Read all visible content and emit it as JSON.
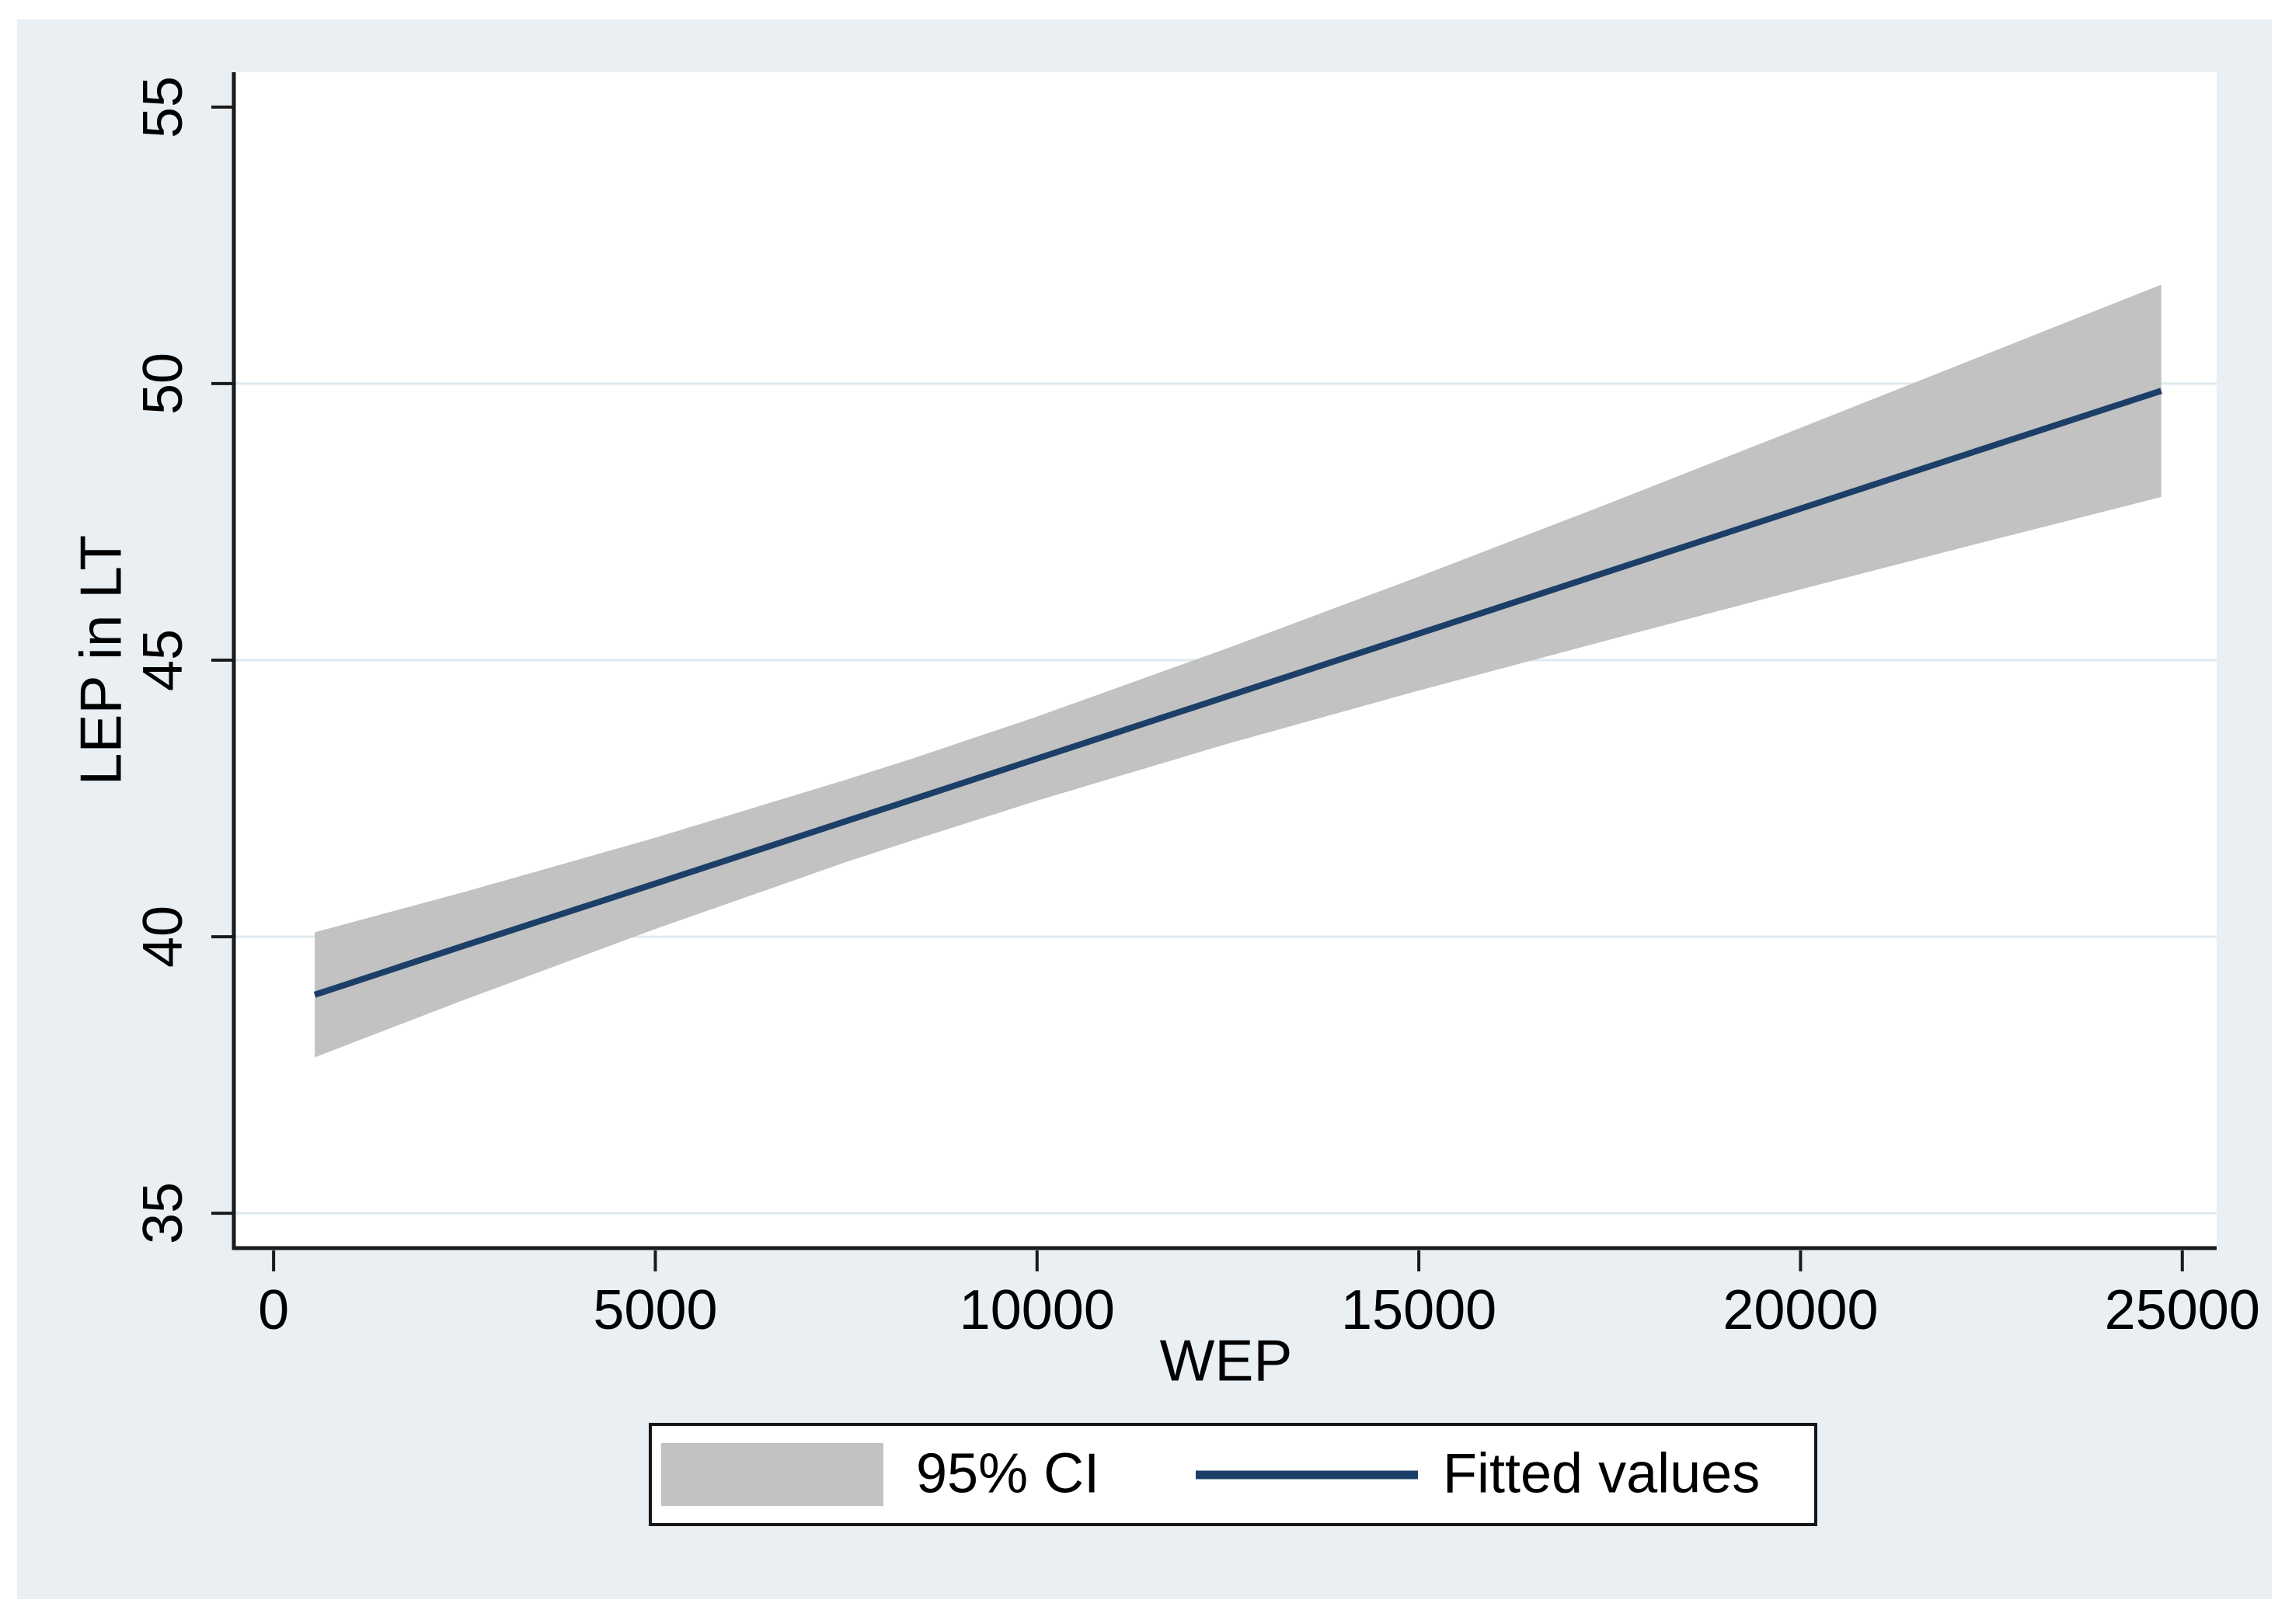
{
  "colors": {
    "panel_bg": "#e9eff3",
    "plot_bg": "#ffffff",
    "gridline": "#dfeaef",
    "axis": "#1a1a1a",
    "band": "#c2c2c2",
    "fit_line": "#1b3f68",
    "text": "#000000",
    "legend_border": "#161616"
  },
  "y_axis": {
    "title": "LEP in LT",
    "tick_labels": [
      "35",
      "40",
      "45",
      "50",
      "55"
    ],
    "tick_values": [
      35,
      40,
      45,
      50,
      55
    ],
    "gridline_values": [
      35,
      40,
      45,
      50
    ],
    "range": [
      34.37,
      55.63
    ]
  },
  "x_axis": {
    "title": "WEP",
    "tick_labels": [
      "0",
      "5000",
      "10000",
      "15000",
      "20000",
      "25000"
    ],
    "tick_values": [
      0,
      5000,
      10000,
      15000,
      20000,
      25000
    ],
    "range": [
      -500,
      25450
    ]
  },
  "legend": {
    "items": [
      {
        "label": "95% CI",
        "type": "area"
      },
      {
        "label": "Fitted values",
        "type": "line"
      }
    ]
  },
  "chart_data": {
    "type": "line",
    "title": "",
    "xlabel": "WEP",
    "ylabel": "LEP in LT",
    "xlim": [
      -500,
      25450
    ],
    "ylim": [
      34.37,
      55.63
    ],
    "grid": true,
    "legend_position": "bottom",
    "x": [
      539,
      2500,
      5000,
      7500,
      8366,
      10000,
      12500,
      15000,
      17500,
      20000,
      22500,
      24725
    ],
    "series": [
      {
        "name": "Fitted values",
        "style": "line",
        "values": [
          38.95,
          39.84,
          40.96,
          42.09,
          42.48,
          43.22,
          44.35,
          45.48,
          46.61,
          47.74,
          48.87,
          49.87
        ]
      },
      {
        "name": "95% CI",
        "style": "band",
        "lower": [
          37.82,
          38.86,
          40.14,
          41.35,
          41.74,
          42.46,
          43.49,
          44.45,
          45.37,
          46.28,
          47.17,
          47.95
        ],
        "upper": [
          40.08,
          40.81,
          41.79,
          42.84,
          43.22,
          43.98,
          45.22,
          46.51,
          47.84,
          49.2,
          50.57,
          51.79
        ]
      }
    ]
  }
}
